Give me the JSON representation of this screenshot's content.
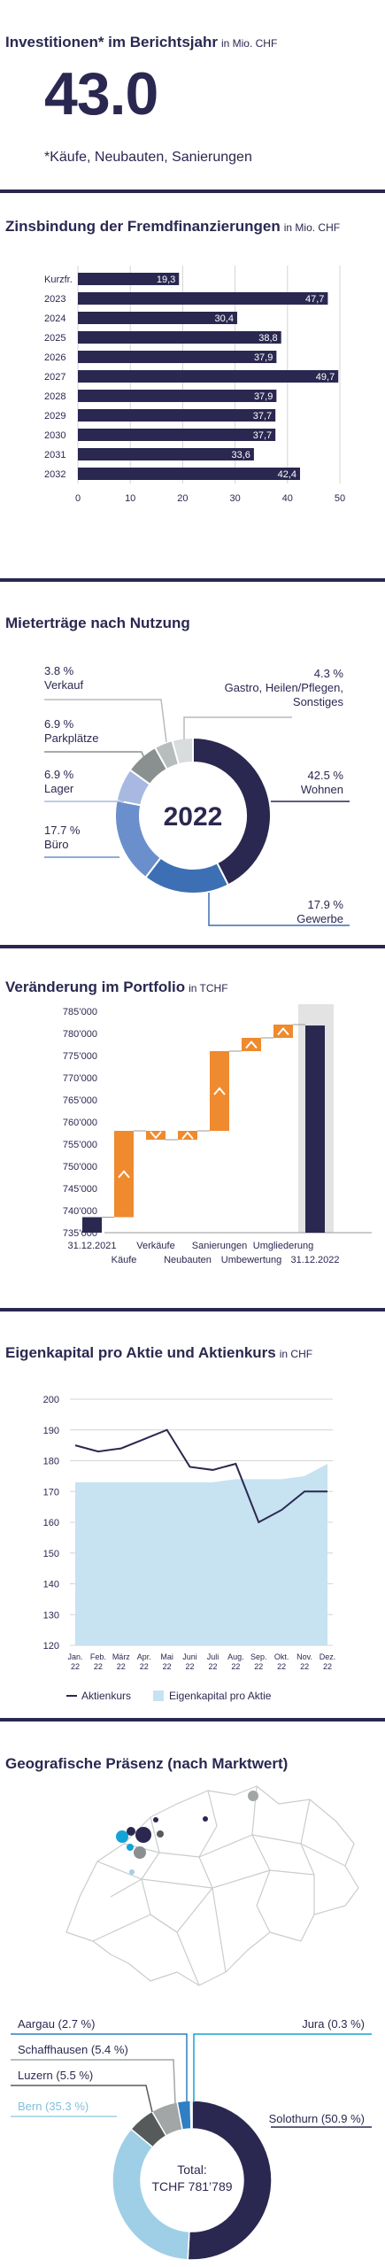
{
  "colors": {
    "navy": "#2a2850",
    "orange": "#ef8a2e",
    "light_blue": "#c7e2f1",
    "grid": "#d4d4d4",
    "grey_bar": "#e3e3e3"
  },
  "invest": {
    "title": "Investitionen* im Berichtsjahr",
    "unit": "in Mio. CHF",
    "value": "43.0",
    "note": "*Käufe, Neubauten, Sanierungen"
  },
  "zins": {
    "title": "Zinsbindung der Fremdfinanzierungen",
    "unit": "in Mio. CHF"
  },
  "mieter": {
    "title": "Mieterträge nach Nutzung",
    "center_label": "2022"
  },
  "portfolio": {
    "title": "Veränderung im Portfolio",
    "unit": "in TCHF"
  },
  "eigen": {
    "title": "Eigenkapital pro Aktie und Aktienkurs",
    "unit": "in CHF"
  },
  "geo": {
    "title": "Geografische Präsenz (nach Marktwert)",
    "total_line1": "Total:",
    "total_line2": "TCHF 781’789"
  },
  "chart_data": [
    {
      "type": "bar",
      "orientation": "horizontal",
      "title": "Zinsbindung der Fremdfinanzierungen",
      "categories": [
        "Kurzfr.",
        "2023",
        "2024",
        "2025",
        "2026",
        "2027",
        "2028",
        "2029",
        "2030",
        "2031",
        "2032"
      ],
      "values": [
        19.3,
        47.7,
        30.4,
        38.8,
        37.9,
        49.7,
        37.9,
        37.7,
        37.7,
        33.6,
        42.4
      ],
      "value_labels": [
        "19,3",
        "47,7",
        "30,4",
        "38,8",
        "37,9",
        "49,7",
        "37,9",
        "37,7",
        "37,7",
        "33,6",
        "42,4"
      ],
      "xlim": [
        0,
        50
      ],
      "xticks": [
        0,
        10,
        20,
        30,
        40,
        50
      ],
      "grid": true
    },
    {
      "type": "pie",
      "donut": true,
      "title": "Mieterträge nach Nutzung",
      "slices": [
        {
          "name": "Wohnen",
          "value": 42.5,
          "label": "42.5 %",
          "color": "#2a2850"
        },
        {
          "name": "Gewerbe",
          "value": 17.9,
          "label": "17.9 %",
          "color": "#3d6fb5"
        },
        {
          "name": "Büro",
          "value": 17.7,
          "label": "17.7 %",
          "color": "#6b8fcc"
        },
        {
          "name": "Lager",
          "value": 6.9,
          "label": "6.9 %",
          "color": "#a7b9e1"
        },
        {
          "name": "Parkplätze",
          "value": 6.9,
          "label": "6.9 %",
          "color": "#8a8f8f"
        },
        {
          "name": "Verkauf",
          "value": 3.8,
          "label": "3.8 %",
          "color": "#b7bcbc"
        },
        {
          "name": "Gastro, Heilen/Pflegen, Sonstiges",
          "value": 4.3,
          "label": "4.3 %",
          "color": "#d9dcdc"
        }
      ]
    },
    {
      "type": "bar",
      "subtype": "waterfall",
      "title": "Veränderung im Portfolio",
      "ylim": [
        735000,
        785000
      ],
      "yticks": [
        "735’000",
        "740’000",
        "745’000",
        "750’000",
        "755’000",
        "760’000",
        "765’000",
        "770’000",
        "775’000",
        "780’000",
        "785’000"
      ],
      "steps": [
        {
          "name": "31.12.2021",
          "kind": "total",
          "from": 735000,
          "to": 738500
        },
        {
          "name": "Käufe",
          "kind": "delta",
          "from": 738500,
          "to": 758000
        },
        {
          "name": "Verkäufe",
          "kind": "delta",
          "from": 758000,
          "to": 756000
        },
        {
          "name": "Neubauten",
          "kind": "delta",
          "from": 756000,
          "to": 758000
        },
        {
          "name": "Sanierungen",
          "kind": "delta",
          "from": 758000,
          "to": 776000
        },
        {
          "name": "Umbewertung",
          "kind": "delta",
          "from": 776000,
          "to": 779000
        },
        {
          "name": "Umgliederung",
          "kind": "delta",
          "from": 779000,
          "to": 782000
        },
        {
          "name": "31.12.2022",
          "kind": "total",
          "from": 735000,
          "to": 781789
        }
      ]
    },
    {
      "type": "line",
      "title": "Eigenkapital pro Aktie und Aktienkurs",
      "categories": [
        "Jan. 22",
        "Feb. 22",
        "März 22",
        "Apr. 22",
        "Mai 22",
        "Juni 22",
        "Juli 22",
        "Aug. 22",
        "Sep. 22",
        "Okt. 22",
        "Nov. 22",
        "Dez. 22"
      ],
      "series": [
        {
          "name": "Aktienkurs",
          "type": "line",
          "color": "#2a2850",
          "values": [
            185,
            183,
            184,
            187,
            190,
            178,
            177,
            179,
            160,
            164,
            170,
            170
          ]
        },
        {
          "name": "Eigenkapital pro Aktie",
          "type": "area",
          "color": "#c7e2f1",
          "values": [
            173,
            173,
            173,
            173,
            173,
            173,
            173,
            174,
            174,
            174,
            175,
            179
          ]
        }
      ],
      "ylim": [
        120,
        200
      ],
      "yticks": [
        120,
        130,
        140,
        150,
        160,
        170,
        180,
        190,
        200
      ],
      "grid": true,
      "legend": "bottom"
    },
    {
      "type": "pie",
      "donut": true,
      "title": "Geografische Präsenz (nach Marktwert)",
      "slices": [
        {
          "name": "Solothurn",
          "value": 50.9,
          "label": "Solothurn (50.9 %)",
          "color": "#2a2850"
        },
        {
          "name": "Bern",
          "value": 35.3,
          "label": "Bern (35.3 %)",
          "color": "#9fcfe6"
        },
        {
          "name": "Luzern",
          "value": 5.5,
          "label": "Luzern (5.5 %)",
          "color": "#565a5a"
        },
        {
          "name": "Schaffhausen",
          "value": 5.4,
          "label": "Schaffhausen (5.4 %)",
          "color": "#a2a6a6"
        },
        {
          "name": "Aargau",
          "value": 2.7,
          "label": "Aargau (2.7 %)",
          "color": "#2f7fc1"
        },
        {
          "name": "Jura",
          "value": 0.3,
          "label": "Jura (0.3 %)",
          "color": "#14a3d5"
        }
      ]
    }
  ]
}
